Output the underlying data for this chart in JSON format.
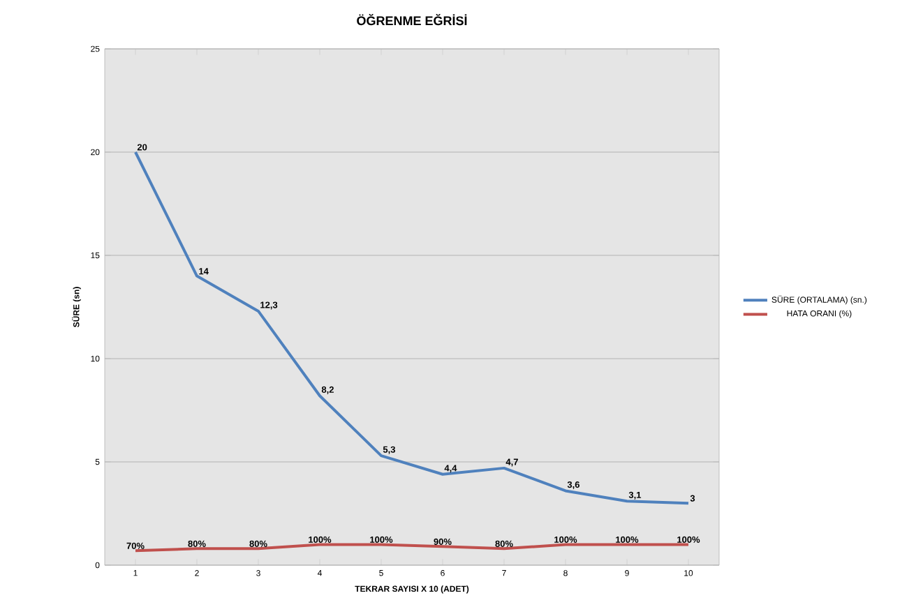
{
  "chart_data": {
    "type": "line",
    "title": "ÖĞRENME EĞRİSİ",
    "xlabel": "TEKRAR SAYISI X 10 (ADET)",
    "ylabel": "SÜRE (sn)",
    "categories": [
      "1",
      "2",
      "3",
      "4",
      "5",
      "6",
      "7",
      "8",
      "9",
      "10"
    ],
    "series": [
      {
        "name": "SÜRE (ORTALAMA) (sn.)",
        "color": "#4f81bd",
        "values": [
          20,
          14,
          12.3,
          8.2,
          5.3,
          4.4,
          4.7,
          3.6,
          3.1,
          3
        ],
        "value_labels": [
          "20",
          "14",
          "12,3",
          "8,2",
          "5,3",
          "4,4",
          "4,7",
          "3,6",
          "3,1",
          "3"
        ]
      },
      {
        "name": "HATA ORANI (%)",
        "color": "#c0504d",
        "values": [
          0.7,
          0.8,
          0.8,
          1.0,
          1.0,
          0.9,
          0.8,
          1.0,
          1.0,
          1.0
        ],
        "value_labels": [
          "70%",
          "80%",
          "80%",
          "100%",
          "100%",
          "90%",
          "80%",
          "100%",
          "100%",
          "100%"
        ]
      }
    ],
    "ylim": [
      0,
      25
    ],
    "yticks": [
      0,
      5,
      10,
      15,
      20,
      25
    ],
    "grid": "y",
    "legend": "right",
    "marker": "none",
    "line_style": "solid"
  }
}
